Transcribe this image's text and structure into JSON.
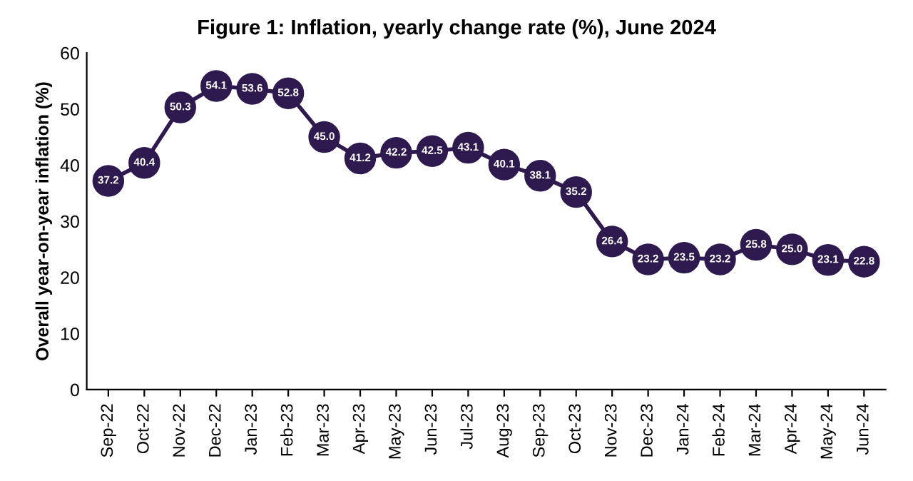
{
  "chart_data": {
    "type": "line",
    "title": "Figure 1: Inflation, yearly change rate (%), June 2024",
    "ylabel": "Overall year-on-year inflation (%)",
    "categories": [
      "Sep-22",
      "Oct-22",
      "Nov-22",
      "Dec-22",
      "Jan-23",
      "Feb-23",
      "Mar-23",
      "Apr-23",
      "May-23",
      "Jun-23",
      "Jul-23",
      "Aug-23",
      "Sep-23",
      "Oct-23",
      "Nov-23",
      "Dec-23",
      "Jan-24",
      "Feb-24",
      "Mar-24",
      "Apr-24",
      "May-24",
      "Jun-24"
    ],
    "values": [
      37.2,
      40.4,
      50.3,
      54.1,
      53.6,
      52.8,
      45.0,
      41.2,
      42.2,
      42.5,
      43.1,
      40.1,
      38.1,
      35.2,
      26.4,
      23.2,
      23.5,
      23.2,
      25.8,
      25.0,
      23.1,
      22.8
    ],
    "color": "#2e1a4f",
    "ylim": [
      0,
      60
    ],
    "yticks": [
      0,
      10,
      20,
      30,
      40,
      50,
      60
    ],
    "grid": false,
    "marker": "circle",
    "value_labels": [
      "37.2",
      "40.4",
      "50.3",
      "54.1",
      "53.6",
      "52.8",
      "45.0",
      "41.2",
      "42.2",
      "42.5",
      "43.1",
      "40.1",
      "38.1",
      "35.2",
      "26.4",
      "23.2",
      "23.5",
      "23.2",
      "25.8",
      "25.0",
      "23.1",
      "22.8"
    ]
  }
}
